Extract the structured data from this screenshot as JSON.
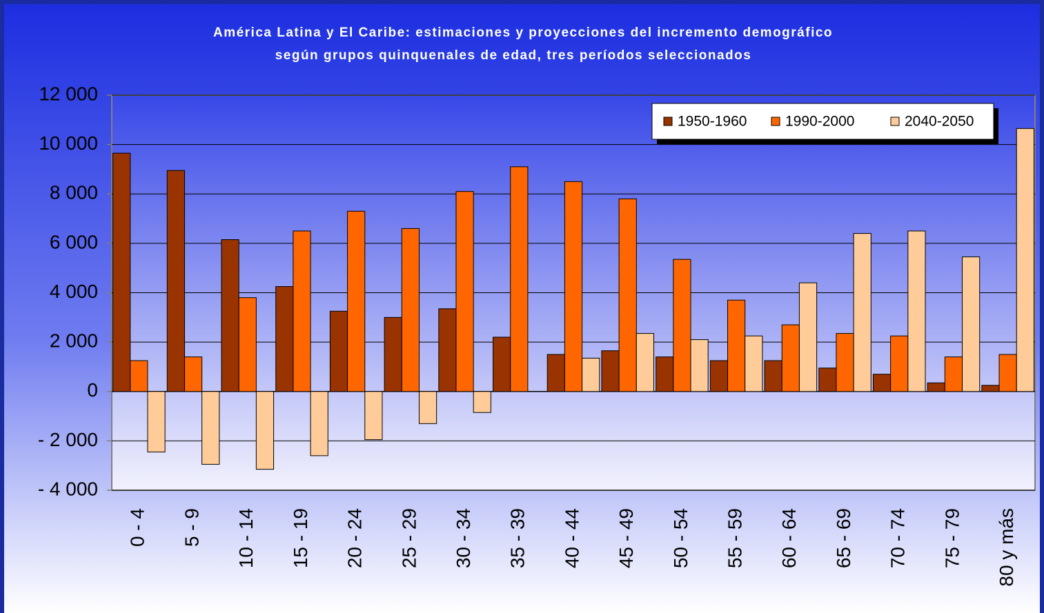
{
  "chart_data": {
    "type": "bar",
    "title": "América Latina y El Caribe: estimaciones y proyecciones del incremento demográfico",
    "subtitle": "según grupos quinquenales de edad, tres períodos seleccionados",
    "categories": [
      "0 - 4",
      "5 - 9",
      "10 - 14",
      "15 - 19",
      "20 - 24",
      "25 - 29",
      "30 - 34",
      "35 - 39",
      "40 - 44",
      "45 - 49",
      "50 - 54",
      "55 - 59",
      "60 - 64",
      "65 - 69",
      "70 - 74",
      "75 - 79",
      "80 y más"
    ],
    "series": [
      {
        "name": "1950-1960",
        "color": "#993300",
        "values": [
          9650,
          8950,
          6150,
          4250,
          3250,
          3000,
          3350,
          2200,
          1500,
          1650,
          1400,
          1250,
          1250,
          950,
          700,
          350,
          250
        ]
      },
      {
        "name": "1990-2000",
        "color": "#ff6600",
        "values": [
          1250,
          1400,
          3800,
          6500,
          7300,
          6600,
          8100,
          9100,
          8500,
          7800,
          5350,
          3700,
          2700,
          2350,
          2250,
          1400,
          1500
        ]
      },
      {
        "name": "2040-2050",
        "color": "#ffcc99",
        "values": [
          -2450,
          -2950,
          -3150,
          -2600,
          -1950,
          -1300,
          -850,
          0,
          1350,
          2350,
          2100,
          2250,
          4400,
          6400,
          6500,
          5450,
          10650
        ]
      }
    ],
    "ylim": [
      -4000,
      12000
    ],
    "yticks": [
      {
        "value": -4000,
        "label": "- 4 000"
      },
      {
        "value": -2000,
        "label": "- 2 000"
      },
      0,
      {
        "value": 2000,
        "label": "2 000"
      },
      {
        "value": 4000,
        "label": "4 000"
      },
      {
        "value": 6000,
        "label": "6 000"
      },
      {
        "value": 8000,
        "label": "8 000"
      },
      {
        "value": 10000,
        "label": "10 000"
      },
      {
        "value": 12000,
        "label": "12 000"
      }
    ],
    "grid": true,
    "legend": "top-right"
  }
}
